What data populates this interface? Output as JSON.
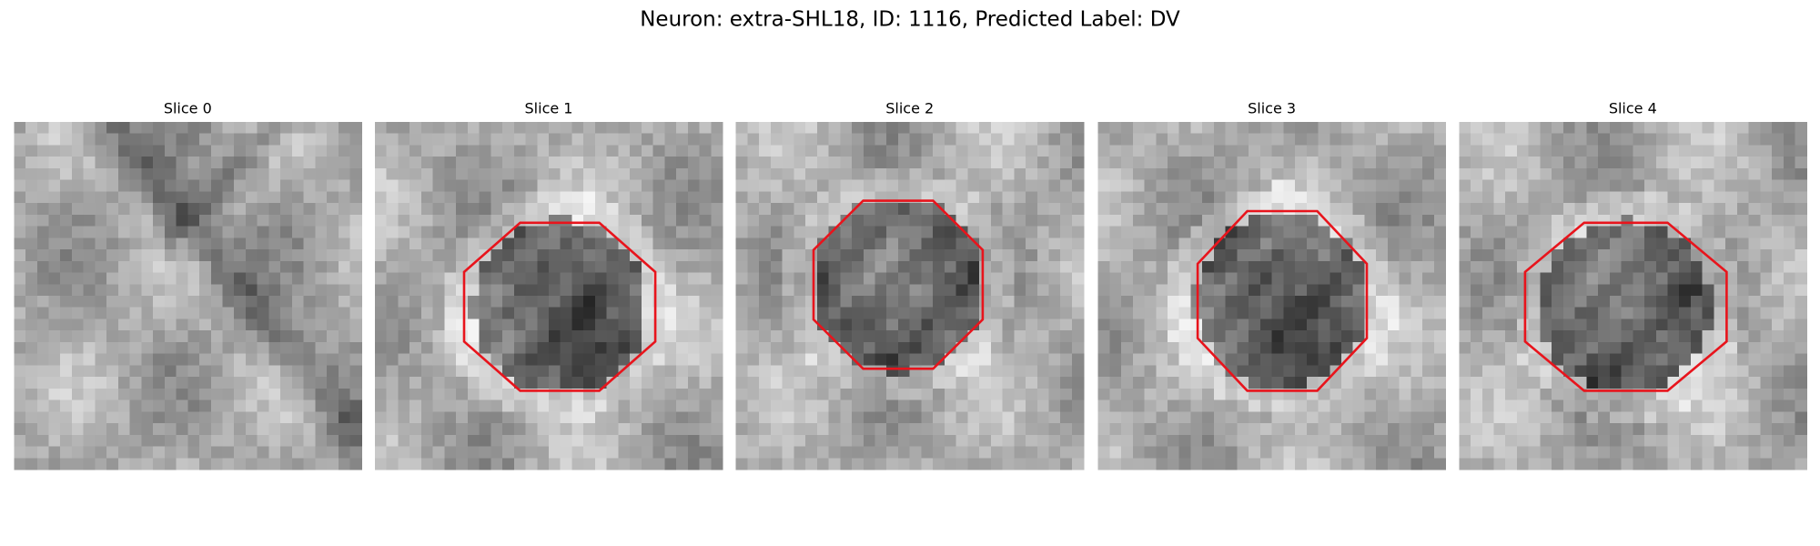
{
  "header": {
    "title": "Neuron: extra-SHL18, ID: 1116, Predicted Label: DV"
  },
  "panels": [
    {
      "title": "Slice 0"
    },
    {
      "title": "Slice 1"
    },
    {
      "title": "Slice 2"
    },
    {
      "title": "Slice 3"
    },
    {
      "title": "Slice 4"
    }
  ]
}
